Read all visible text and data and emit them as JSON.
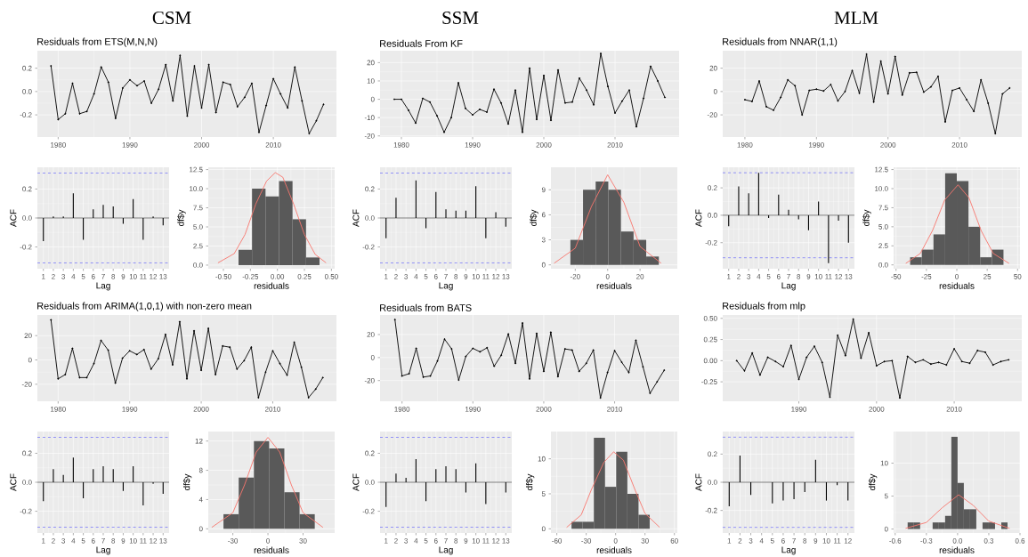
{
  "chart_data": [
    {
      "type": "line",
      "title": "CSM",
      "subtitle": "Residuals from ETS(M,N,N)",
      "color": "#000000",
      "marker": "circle",
      "grid": true,
      "xlim": [
        1977.1,
        2018.8
      ],
      "ylim": [
        -0.39,
        0.35
      ],
      "xticks": [
        1980,
        1990,
        2000,
        2010
      ],
      "yticks": [
        -0.2,
        {
          "value": 0,
          "label": "0.0"
        },
        0.2
      ],
      "x": [
        1979,
        1980,
        1981,
        1982,
        1983,
        1984,
        1985,
        1986,
        1987,
        1988,
        1989,
        1990,
        1991,
        1992,
        1993,
        1994,
        1995,
        1996,
        1997,
        1998,
        1999,
        2000,
        2001,
        2002,
        2003,
        2004,
        2005,
        2006,
        2007,
        2008,
        2009,
        2010,
        2011,
        2012,
        2013,
        2014,
        2015,
        2016,
        2017
      ],
      "values": [
        0.22,
        -0.24,
        -0.19,
        0.07,
        -0.19,
        -0.17,
        -0.02,
        0.21,
        0.08,
        -0.23,
        0.03,
        0.1,
        0.05,
        0.09,
        -0.1,
        0.02,
        0.23,
        -0.08,
        0.31,
        -0.21,
        0.22,
        -0.14,
        0.23,
        -0.18,
        0.08,
        0.06,
        -0.13,
        -0.05,
        0.07,
        -0.35,
        -0.12,
        0.11,
        -0.02,
        -0.14,
        0.21,
        -0.08,
        -0.36,
        -0.25,
        -0.11
      ]
    },
    {
      "type": "line",
      "title": "SSM",
      "subtitle": "Residuals From KF",
      "color": "#000000",
      "marker": "circle",
      "grid": true,
      "xlim": [
        1977.0,
        2019.0
      ],
      "ylim": [
        -20.6,
        26.5
      ],
      "xticks": [
        1980,
        1990,
        2000,
        2010
      ],
      "yticks": [
        -20,
        -10,
        0,
        10,
        20
      ],
      "x": [
        1979,
        1980,
        1981,
        1982,
        1983,
        1984,
        1985,
        1986,
        1987,
        1988,
        1989,
        1990,
        1991,
        1992,
        1993,
        1994,
        1995,
        1996,
        1997,
        1998,
        1999,
        2000,
        2001,
        2002,
        2003,
        2004,
        2005,
        2006,
        2007,
        2008,
        2009,
        2010,
        2011,
        2012,
        2013,
        2014,
        2015,
        2016,
        2017
      ],
      "values": [
        0,
        0,
        -6,
        -13,
        0.5,
        -1.5,
        -9,
        -18,
        -10,
        9,
        -5,
        -8.5,
        -5.5,
        -7,
        5.5,
        -2,
        -13.5,
        5,
        -18,
        17,
        -11,
        13,
        -11.5,
        16,
        -2,
        -1.5,
        11.5,
        5,
        -3,
        25,
        7,
        -7.5,
        -1,
        5,
        -15,
        0.5,
        18,
        10,
        1
      ]
    },
    {
      "type": "line",
      "title": "MLM",
      "subtitle": "Residuals from NNAR(1,1)",
      "color": "#000000",
      "marker": "circle",
      "grid": true,
      "xlim": [
        1976.9,
        2018.7
      ],
      "ylim": [
        -39,
        35
      ],
      "xticks": [
        1980,
        1990,
        2000,
        2010
      ],
      "yticks": [
        -20,
        0,
        20
      ],
      "x": [
        1980,
        1981,
        1982,
        1983,
        1984,
        1985,
        1986,
        1987,
        1988,
        1989,
        1990,
        1991,
        1992,
        1993,
        1994,
        1995,
        1996,
        1997,
        1998,
        1999,
        2000,
        2001,
        2002,
        2003,
        2004,
        2005,
        2006,
        2007,
        2008,
        2009,
        2010,
        2011,
        2012,
        2013,
        2014,
        2015,
        2016,
        2017
      ],
      "values": [
        -7,
        -8.5,
        9,
        -13,
        -16,
        -5,
        10,
        5,
        -20,
        1,
        2,
        0.5,
        6,
        -8,
        0,
        18,
        -1.5,
        32,
        -9,
        26,
        -2,
        30,
        -3,
        16,
        16.5,
        -0.5,
        4,
        13,
        -26,
        1,
        3,
        -7,
        -17,
        10,
        -10,
        -36,
        -2,
        3
      ]
    },
    {
      "type": "bar",
      "xlabel": "Lag",
      "ylabel": "ACF",
      "color": "#000000",
      "grid": true,
      "xlim": [
        0.4,
        13.6
      ],
      "ylim": [
        -0.35,
        0.35
      ],
      "xticks": [
        1,
        2,
        3,
        4,
        5,
        6,
        7,
        8,
        9,
        10,
        11,
        12,
        13
      ],
      "yticks": [
        -0.2,
        {
          "value": 0,
          "label": "0.0"
        },
        0.2
      ],
      "x": [
        1,
        2,
        3,
        4,
        5,
        6,
        7,
        8,
        9,
        10,
        11,
        12,
        13
      ],
      "values": [
        -0.16,
        0.01,
        0.01,
        0.17,
        -0.15,
        0.06,
        0.09,
        0.08,
        -0.04,
        0.13,
        -0.15,
        0.01,
        -0.05
      ],
      "ref_lines": [
        {
          "axis": "y",
          "value": 0,
          "color": "#000000",
          "line_style": "solid"
        },
        {
          "axis": "y",
          "value": 0.31,
          "color": "#3333ff",
          "line_style": "dashed"
        },
        {
          "axis": "y",
          "value": -0.31,
          "color": "#3333ff",
          "line_style": "dashed"
        }
      ]
    },
    {
      "type": "histogram",
      "xlabel": "residuals",
      "ylabel": "df$y",
      "color": "#595959",
      "grid": true,
      "xlim": [
        -0.64,
        0.53
      ],
      "ylim": [
        -0.47,
        12.8
      ],
      "xticks": [
        {
          "value": -0.5,
          "label": "-0.50"
        },
        -0.25,
        {
          "value": 0,
          "label": "0.00"
        },
        0.25,
        {
          "value": 0.5,
          "label": "0.50"
        }
      ],
      "yticks": [
        {
          "value": 0,
          "label": "0.0"
        },
        2.5,
        {
          "value": 5,
          "label": "5.0"
        },
        7.5,
        {
          "value": 10,
          "label": "10.0"
        },
        12.5
      ],
      "bins": [
        -0.36,
        -0.235,
        -0.11,
        0.015,
        0.14,
        0.265,
        0.39
      ],
      "values": [
        2,
        10,
        9,
        11,
        6,
        1
      ],
      "series": [
        {
          "type": "line",
          "color": "#f8766d",
          "x": [
            -0.55,
            -0.4,
            -0.3,
            -0.2,
            -0.1,
            -0.02,
            0.05,
            0.15,
            0.25,
            0.35,
            0.45
          ],
          "values": [
            0.3,
            1.5,
            4,
            8,
            11,
            12.1,
            11.5,
            8,
            4,
            1.4,
            0.3
          ]
        }
      ]
    },
    {
      "type": "bar",
      "xlabel": "Lag",
      "ylabel": "ACF",
      "color": "#000000",
      "grid": true,
      "xlim": [
        0.4,
        13.6
      ],
      "ylim": [
        -0.35,
        0.35
      ],
      "xticks": [
        1,
        2,
        3,
        4,
        5,
        6,
        7,
        8,
        9,
        10,
        11,
        12,
        13
      ],
      "yticks": [
        -0.2,
        {
          "value": 0,
          "label": "0.0"
        },
        0.2
      ],
      "x": [
        1,
        2,
        3,
        4,
        5,
        6,
        7,
        8,
        9,
        10,
        11,
        12,
        13
      ],
      "values": [
        -0.14,
        0.14,
        0,
        0.26,
        -0.07,
        0.18,
        0.06,
        0.05,
        0.05,
        0.22,
        -0.14,
        0.04,
        -0.06
      ],
      "ref_lines": [
        {
          "axis": "y",
          "value": 0,
          "color": "#000000",
          "line_style": "solid"
        },
        {
          "axis": "y",
          "value": 0.31,
          "color": "#3333ff",
          "line_style": "dashed"
        },
        {
          "axis": "y",
          "value": -0.31,
          "color": "#3333ff",
          "line_style": "dashed"
        }
      ]
    },
    {
      "type": "histogram",
      "xlabel": "residuals",
      "ylabel": "df$y",
      "color": "#595959",
      "grid": true,
      "xlim": [
        -35,
        43
      ],
      "ylim": [
        -0.46,
        11.7
      ],
      "xticks": [
        -20,
        0,
        20
      ],
      "yticks": [
        0,
        3,
        6,
        9
      ],
      "bins": [
        -23,
        -15.2,
        -7.4,
        0.4,
        8.2,
        16,
        23.8,
        31.6
      ],
      "values": [
        3,
        9,
        10,
        9,
        4,
        3,
        1
      ],
      "series": [
        {
          "type": "line",
          "color": "#f8766d",
          "x": [
            -33,
            -20,
            -10,
            0,
            10,
            20,
            33
          ],
          "values": [
            0.2,
            2,
            7,
            10.8,
            7.5,
            2.2,
            0.2
          ]
        }
      ]
    },
    {
      "type": "bar",
      "xlabel": "Lag",
      "ylabel": "ACF",
      "color": "#000000",
      "grid": true,
      "xlim": [
        0.4,
        13.6
      ],
      "ylim": [
        -0.39,
        0.35
      ],
      "xticks": [
        1,
        2,
        3,
        4,
        5,
        6,
        7,
        8,
        9,
        10,
        11,
        12,
        13
      ],
      "yticks": [
        -0.2,
        {
          "value": 0,
          "label": "0.0"
        },
        0.2
      ],
      "x": [
        1,
        2,
        3,
        4,
        5,
        6,
        7,
        8,
        9,
        10,
        11,
        12,
        13
      ],
      "values": [
        -0.08,
        0.21,
        0.16,
        0.31,
        -0.02,
        0.15,
        0.04,
        -0.03,
        -0.11,
        0.1,
        -0.35,
        -0.04,
        -0.2
      ],
      "ref_lines": [
        {
          "axis": "y",
          "value": 0,
          "color": "#000000",
          "line_style": "solid"
        },
        {
          "axis": "y",
          "value": 0.31,
          "color": "#3333ff",
          "line_style": "dashed"
        },
        {
          "axis": "y",
          "value": -0.31,
          "color": "#3333ff",
          "line_style": "dashed"
        }
      ]
    },
    {
      "type": "histogram",
      "xlabel": "residuals",
      "ylabel": "df$y",
      "color": "#595959",
      "grid": true,
      "xlim": [
        -52,
        52
      ],
      "ylim": [
        -0.5,
        12.8
      ],
      "xticks": [
        -50,
        -25,
        0,
        25,
        50
      ],
      "yticks": [
        {
          "value": 0,
          "label": "0.0"
        },
        2.5,
        {
          "value": 5,
          "label": "5.0"
        },
        7.5,
        {
          "value": 10,
          "label": "10.0"
        },
        12.5
      ],
      "bins": [
        -38.4,
        -28.8,
        -19.2,
        -9.6,
        0,
        9.6,
        19.2,
        28.8,
        38.4
      ],
      "values": [
        1,
        2,
        4,
        12,
        11,
        5,
        1,
        2
      ],
      "series": [
        {
          "type": "line",
          "color": "#f8766d",
          "x": [
            -42,
            -30,
            -20,
            -10,
            1,
            10,
            20,
            30,
            43
          ],
          "values": [
            0.2,
            1.5,
            4.5,
            8.5,
            10.5,
            8.8,
            4.5,
            1.5,
            0.2
          ]
        }
      ]
    },
    {
      "type": "line",
      "title": "Residuals from ARIMA(1,0,1) with non-zero mean",
      "color": "#000000",
      "marker": "circle",
      "grid": true,
      "xlim": [
        1977.1,
        2018.9
      ],
      "ylim": [
        -34,
        37
      ],
      "xticks": [
        1980,
        1990,
        2000,
        2010
      ],
      "yticks": [
        -20,
        0,
        20
      ],
      "x": [
        1979,
        1980,
        1981,
        1982,
        1983,
        1984,
        1985,
        1986,
        1987,
        1988,
        1989,
        1990,
        1991,
        1992,
        1993,
        1994,
        1995,
        1996,
        1997,
        1998,
        1999,
        2000,
        2001,
        2002,
        2003,
        2004,
        2005,
        2006,
        2007,
        2008,
        2009,
        2010,
        2011,
        2012,
        2013,
        2014,
        2015,
        2016,
        2017
      ],
      "values": [
        33,
        -15.5,
        -12,
        9.5,
        -14.5,
        -14.5,
        -3,
        16,
        8,
        -19,
        1.5,
        7.5,
        4.5,
        8.5,
        -7.5,
        1,
        21,
        -4,
        31.5,
        -15.5,
        24,
        -8.5,
        26,
        -12,
        11.5,
        10.5,
        -7.5,
        -0.5,
        10.5,
        -31,
        -10,
        7.5,
        -3,
        -12.5,
        14.5,
        -6,
        -31,
        -24,
        -14.5
      ]
    },
    {
      "type": "line",
      "title": "Residuals from BATS",
      "color": "#000000",
      "marker": "circle",
      "grid": true,
      "xlim": [
        1976.9,
        2019.1
      ],
      "ylim": [
        -38,
        37
      ],
      "xticks": [
        1980,
        1990,
        2000,
        2010
      ],
      "yticks": [
        -20,
        0,
        20
      ],
      "x": [
        1979,
        1980,
        1981,
        1982,
        1983,
        1984,
        1985,
        1986,
        1987,
        1988,
        1989,
        1990,
        1991,
        1992,
        1993,
        1994,
        1995,
        1996,
        1997,
        1998,
        1999,
        2000,
        2001,
        2002,
        2003,
        2004,
        2005,
        2006,
        2007,
        2008,
        2009,
        2010,
        2011,
        2012,
        2013,
        2014,
        2015,
        2016,
        2017
      ],
      "values": [
        33,
        -16,
        -14,
        8,
        -17,
        -16,
        -3,
        16,
        7.5,
        -19.5,
        1,
        8,
        5,
        8.5,
        -7.5,
        2,
        20.5,
        -5,
        30,
        -18.5,
        21,
        -12,
        22,
        -16.5,
        7.5,
        6.5,
        -12,
        -5,
        6.5,
        -35,
        -13,
        6,
        -4,
        -13,
        15,
        -8,
        -31,
        -21,
        -11
      ]
    },
    {
      "type": "line",
      "title": "Residuals from mlp",
      "color": "#000000",
      "marker": "circle",
      "grid": true,
      "xlim": [
        1980.2,
        2018.7
      ],
      "ylim": [
        -0.48,
        0.54
      ],
      "xticks": [
        1990,
        2000,
        2010
      ],
      "yticks": [
        -0.25,
        {
          "value": 0,
          "label": "0.00"
        },
        0.25,
        {
          "value": 0.5,
          "label": "0.50"
        }
      ],
      "x": [
        1982,
        1983,
        1984,
        1985,
        1986,
        1987,
        1988,
        1989,
        1990,
        1991,
        1992,
        1993,
        1994,
        1995,
        1996,
        1997,
        1998,
        1999,
        2000,
        2001,
        2002,
        2003,
        2004,
        2005,
        2006,
        2007,
        2008,
        2009,
        2010,
        2011,
        2012,
        2013,
        2014,
        2015,
        2016,
        2017
      ],
      "values": [
        0,
        -0.12,
        0.09,
        -0.17,
        0.04,
        -0.01,
        -0.07,
        0.18,
        -0.22,
        0.04,
        0.17,
        -0.02,
        -0.43,
        0.3,
        0.06,
        0.49,
        0.03,
        0.33,
        -0.06,
        -0.01,
        0,
        -0.44,
        0.05,
        -0.02,
        0.01,
        -0.04,
        -0.02,
        -0.05,
        0.14,
        -0.01,
        -0.03,
        0.12,
        0.1,
        -0.05,
        -0.01,
        0.01
      ]
    },
    {
      "type": "bar",
      "xlabel": "Lag",
      "ylabel": "ACF",
      "color": "#000000",
      "grid": true,
      "xlim": [
        0.4,
        13.6
      ],
      "ylim": [
        -0.35,
        0.35
      ],
      "xticks": [
        1,
        2,
        3,
        4,
        5,
        6,
        7,
        8,
        9,
        10,
        11,
        12,
        13
      ],
      "yticks": [
        -0.2,
        {
          "value": 0,
          "label": "0.0"
        },
        0.2
      ],
      "x": [
        1,
        2,
        3,
        4,
        5,
        6,
        7,
        8,
        9,
        10,
        11,
        12,
        13
      ],
      "values": [
        -0.13,
        0.09,
        0.05,
        0.17,
        -0.11,
        0.09,
        0.11,
        0.09,
        -0.06,
        0.11,
        -0.16,
        -0.01,
        -0.08
      ],
      "ref_lines": [
        {
          "axis": "y",
          "value": 0,
          "color": "#000000",
          "line_style": "solid"
        },
        {
          "axis": "y",
          "value": 0.31,
          "color": "#3333ff",
          "line_style": "dashed"
        },
        {
          "axis": "y",
          "value": -0.31,
          "color": "#3333ff",
          "line_style": "dashed"
        }
      ]
    },
    {
      "type": "histogram",
      "xlabel": "residuals",
      "ylabel": "df$y",
      "color": "#595959",
      "grid": true,
      "xlim": [
        -51,
        57
      ],
      "ylim": [
        -0.57,
        13.3
      ],
      "xticks": [
        -30,
        0,
        30
      ],
      "yticks": [
        0,
        4,
        8,
        12
      ],
      "bins": [
        -38,
        -25,
        -12,
        1,
        14,
        27,
        40
      ],
      "values": [
        2,
        7,
        12,
        11,
        5,
        2
      ],
      "series": [
        {
          "type": "line",
          "color": "#f8766d",
          "x": [
            -48,
            -30,
            -20,
            -10,
            0,
            10,
            20,
            30,
            47
          ],
          "values": [
            0.2,
            2.2,
            6,
            10.5,
            12.5,
            10.5,
            6,
            2.2,
            0.2
          ]
        }
      ]
    },
    {
      "type": "bar",
      "xlabel": "Lag",
      "ylabel": "ACF",
      "color": "#000000",
      "grid": true,
      "xlim": [
        0.4,
        13.6
      ],
      "ylim": [
        -0.35,
        0.35
      ],
      "xticks": [
        1,
        2,
        3,
        4,
        5,
        6,
        7,
        8,
        9,
        10,
        11,
        12,
        13
      ],
      "yticks": [
        -0.2,
        {
          "value": 0,
          "label": "0.0"
        },
        0.2
      ],
      "x": [
        1,
        2,
        3,
        4,
        5,
        6,
        7,
        8,
        9,
        10,
        11,
        12,
        13
      ],
      "values": [
        -0.17,
        0.06,
        0.03,
        0.16,
        -0.13,
        0.09,
        0.11,
        0.09,
        -0.07,
        0.13,
        -0.15,
        null,
        -0.07
      ],
      "ref_lines": [
        {
          "axis": "y",
          "value": 0,
          "color": "#000000",
          "line_style": "solid"
        },
        {
          "axis": "y",
          "value": 0.31,
          "color": "#3333ff",
          "line_style": "dashed"
        },
        {
          "axis": "y",
          "value": -0.31,
          "color": "#3333ff",
          "line_style": "dashed"
        }
      ]
    },
    {
      "type": "histogram",
      "xlabel": "residuals",
      "ylabel": "df$y",
      "color": "#595959",
      "grid": true,
      "xlim": [
        -66,
        63
      ],
      "ylim": [
        -0.6,
        13.9
      ],
      "xticks": [
        -60,
        -30,
        0,
        30,
        60
      ],
      "yticks": [
        0,
        5,
        10
      ],
      "bins": [
        -45,
        -33.6,
        -22.2,
        -10.8,
        0.6,
        12,
        23.4,
        34.8
      ],
      "values": [
        1,
        1,
        13,
        6,
        11,
        5,
        2
      ],
      "series": [
        {
          "type": "line",
          "color": "#f8766d",
          "x": [
            -50,
            -35,
            -25,
            -12,
            -2,
            8,
            20,
            30,
            45
          ],
          "values": [
            0.2,
            2,
            5.5,
            9.5,
            11,
            9.8,
            5.5,
            2.2,
            0.2
          ]
        }
      ]
    },
    {
      "type": "bar",
      "xlabel": "Lag",
      "ylabel": "ACF",
      "color": "#000000",
      "grid": true,
      "xlim": [
        0.4,
        12.6
      ],
      "ylim": [
        -0.36,
        0.36
      ],
      "xticks": [
        1,
        2,
        3,
        4,
        5,
        6,
        7,
        8,
        9,
        10,
        11,
        12
      ],
      "yticks": [
        -0.2,
        {
          "value": 0,
          "label": "0.0"
        },
        0.2
      ],
      "x": [
        1,
        2,
        3,
        4,
        5,
        6,
        7,
        8,
        9,
        10,
        11,
        12
      ],
      "values": [
        -0.17,
        0.19,
        -0.09,
        0,
        -0.15,
        -0.13,
        -0.12,
        -0.07,
        0.16,
        -0.13,
        -0.02,
        -0.13
      ],
      "ref_lines": [
        {
          "axis": "y",
          "value": 0,
          "color": "#000000",
          "line_style": "solid"
        },
        {
          "axis": "y",
          "value": 0.32,
          "color": "#3333ff",
          "line_style": "dashed"
        },
        {
          "axis": "y",
          "value": -0.32,
          "color": "#3333ff",
          "line_style": "dashed"
        }
      ]
    },
    {
      "type": "histogram",
      "xlabel": "residuals",
      "ylabel": "df$y",
      "color": "#595959",
      "grid": true,
      "xlim": [
        -0.615,
        0.6
      ],
      "ylim": [
        -0.6,
        14.8
      ],
      "xticks": [
        -0.6,
        -0.3,
        {
          "value": 0,
          "label": "0.0"
        },
        0.3,
        0.6
      ],
      "yticks": [
        0,
        5,
        10
      ],
      "bins": [
        -0.48,
        -0.42,
        -0.36,
        -0.3,
        -0.24,
        -0.18,
        -0.12,
        -0.06,
        0,
        0.06,
        0.12,
        0.18,
        0.24,
        0.3,
        0.36,
        0.42,
        0.48
      ],
      "values": [
        1,
        1,
        0,
        0,
        1,
        1,
        2,
        14,
        7,
        3,
        3,
        0,
        1,
        1,
        0,
        1
      ],
      "series": [
        {
          "type": "line",
          "color": "#f8766d",
          "x": [
            -0.5,
            -0.3,
            -0.15,
            0.01,
            0.15,
            0.3,
            0.5
          ],
          "values": [
            0.1,
            1,
            3.2,
            5.2,
            3.6,
            1.2,
            0.1
          ]
        }
      ]
    }
  ]
}
